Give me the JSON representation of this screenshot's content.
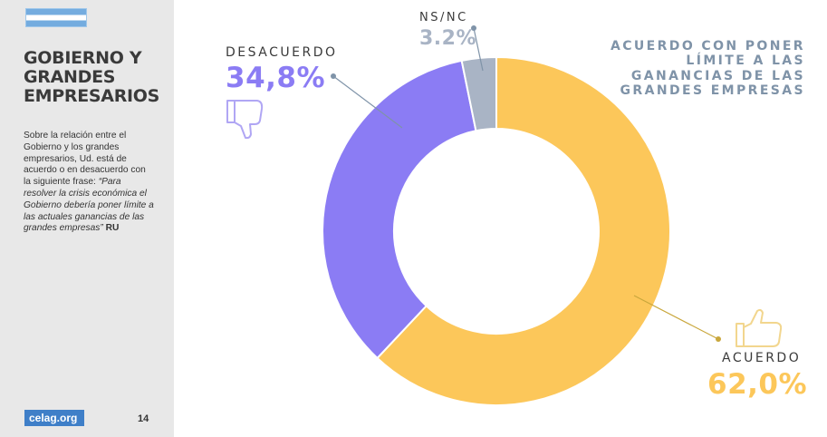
{
  "sidebar": {
    "title": "GOBIERNO Y GRANDES EMPRESARIOS",
    "description_intro": "Sobre la relación entre el Gobierno y los grandes empresarios, Ud. está de acuerdo o en desacuerdo con la siguiente frase: ",
    "description_quote": "“Para resolver la crisis económica el Gobierno debería poner límite a las actuales ganancias de las grandes empresas”",
    "description_source": "RU",
    "logo_text": "celag.org",
    "page_number": "14"
  },
  "header_note": "ACUERDO CON PONER LÍMITE A LAS GANANCIAS DE LAS GRANDES EMPRESAS",
  "labels": {
    "nsnc": "NS/NC",
    "nsnc_pct": "3.2%",
    "desacuerdo": "DESACUERDO",
    "desacuerdo_pct": "34,8%",
    "acuerdo": "ACUERDO",
    "acuerdo_pct": "62,0%"
  },
  "colors": {
    "acuerdo": "#fcc75a",
    "desacuerdo": "#8b7cf4",
    "nsnc": "#a9b4c5",
    "accent_label": "#7f93a8"
  },
  "icons": {
    "desacuerdo": "thumbs-down-icon",
    "acuerdo": "thumbs-up-icon"
  },
  "chart_data": {
    "type": "pie",
    "donut": true,
    "categories": [
      "ACUERDO",
      "DESACUERDO",
      "NS/NC"
    ],
    "values": [
      62.0,
      34.8,
      3.2
    ],
    "colors": [
      "#fcc75a",
      "#8b7cf4",
      "#a9b4c5"
    ],
    "start": "top, clockwise"
  }
}
